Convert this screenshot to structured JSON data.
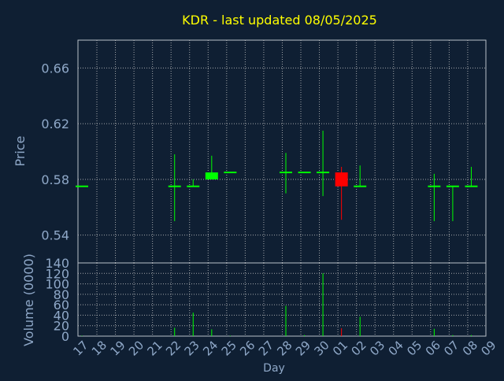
{
  "colors": {
    "background": "#0f1f33",
    "title": "#ffff00",
    "axis_text": "#8fa8c8",
    "frame": "#b8c0c8",
    "grid": "#c8c8c8",
    "up": "#00ff00",
    "down": "#ff0000"
  },
  "chart_data": [
    {
      "type": "candlestick",
      "title": "KDR - last updated 08/05/2025",
      "ylabel": "Price",
      "ylim": [
        0.52,
        0.68
      ],
      "yticks": [
        "0.54",
        "0.58",
        "0.62",
        "0.66"
      ],
      "grid": true,
      "categories": [
        "17",
        "18",
        "19",
        "20",
        "21",
        "22",
        "23",
        "24",
        "25",
        "26",
        "27",
        "28",
        "29",
        "30",
        "01",
        "02",
        "03",
        "04",
        "05",
        "06",
        "07",
        "08",
        "09"
      ],
      "candles": [
        {
          "x": "17",
          "open": 0.575,
          "high": 0.575,
          "low": 0.575,
          "close": 0.575
        },
        {
          "x": "22",
          "open": 0.575,
          "high": 0.598,
          "low": 0.55,
          "close": 0.575
        },
        {
          "x": "23",
          "open": 0.575,
          "high": 0.58,
          "low": 0.575,
          "close": 0.575
        },
        {
          "x": "24",
          "open": 0.58,
          "high": 0.597,
          "low": 0.58,
          "close": 0.585
        },
        {
          "x": "25",
          "open": 0.585,
          "high": 0.585,
          "low": 0.585,
          "close": 0.585
        },
        {
          "x": "28",
          "open": 0.585,
          "high": 0.599,
          "low": 0.57,
          "close": 0.585
        },
        {
          "x": "29",
          "open": 0.585,
          "high": 0.585,
          "low": 0.585,
          "close": 0.585
        },
        {
          "x": "30",
          "open": 0.585,
          "high": 0.615,
          "low": 0.568,
          "close": 0.585
        },
        {
          "x": "01",
          "open": 0.585,
          "high": 0.589,
          "low": 0.551,
          "close": 0.575
        },
        {
          "x": "02",
          "open": 0.575,
          "high": 0.59,
          "low": 0.575,
          "close": 0.575
        },
        {
          "x": "06",
          "open": 0.575,
          "high": 0.584,
          "low": 0.55,
          "close": 0.575
        },
        {
          "x": "07",
          "open": 0.575,
          "high": 0.575,
          "low": 0.55,
          "close": 0.575
        },
        {
          "x": "08",
          "open": 0.575,
          "high": 0.589,
          "low": 0.575,
          "close": 0.575
        }
      ]
    },
    {
      "type": "bar",
      "ylabel": "Volume (0000)",
      "xlabel": "Day",
      "ylim": [
        0,
        140
      ],
      "yticks": [
        "0",
        "20",
        "40",
        "60",
        "80",
        "100",
        "120",
        "140"
      ],
      "grid": true,
      "categories": [
        "17",
        "18",
        "19",
        "20",
        "21",
        "22",
        "23",
        "24",
        "25",
        "26",
        "27",
        "28",
        "29",
        "30",
        "01",
        "02",
        "03",
        "04",
        "05",
        "06",
        "07",
        "08",
        "09"
      ],
      "bars": [
        {
          "x": "17",
          "value": 1,
          "direction": "up"
        },
        {
          "x": "22",
          "value": 16,
          "direction": "up"
        },
        {
          "x": "23",
          "value": 45,
          "direction": "up"
        },
        {
          "x": "24",
          "value": 13,
          "direction": "up"
        },
        {
          "x": "25",
          "value": 1,
          "direction": "up"
        },
        {
          "x": "28",
          "value": 58,
          "direction": "up"
        },
        {
          "x": "29",
          "value": 2,
          "direction": "up"
        },
        {
          "x": "30",
          "value": 120,
          "direction": "up"
        },
        {
          "x": "01",
          "value": 15,
          "direction": "down"
        },
        {
          "x": "02",
          "value": 37,
          "direction": "up"
        },
        {
          "x": "06",
          "value": 14,
          "direction": "up"
        },
        {
          "x": "07",
          "value": 2,
          "direction": "up"
        },
        {
          "x": "08",
          "value": 2,
          "direction": "up"
        }
      ]
    }
  ]
}
